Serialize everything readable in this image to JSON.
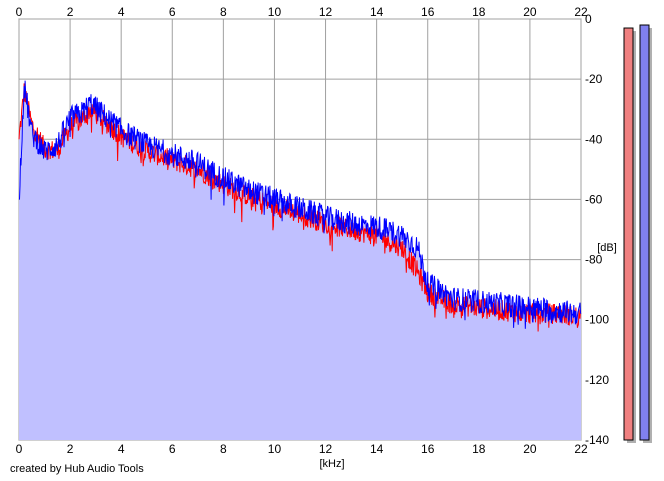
{
  "chart_data": {
    "type": "area",
    "title": "",
    "xlabel": "[kHz]",
    "ylabel": "[dB]",
    "xlim": [
      0,
      22
    ],
    "ylim": [
      -140,
      0
    ],
    "x_ticks": [
      0,
      2,
      4,
      6,
      8,
      10,
      12,
      14,
      16,
      18,
      20,
      22
    ],
    "y_ticks": [
      0,
      -20,
      -40,
      -60,
      -80,
      -100,
      -120,
      -140
    ],
    "grid": true,
    "legend": "none",
    "series": [
      {
        "color": "#ff0000",
        "x": [
          0.0,
          0.2,
          0.5,
          1.0,
          1.5,
          2.0,
          2.5,
          2.8,
          3.2,
          4.0,
          5.0,
          6.0,
          7.0,
          8.0,
          9.0,
          10.0,
          11.0,
          12.0,
          13.0,
          14.0,
          15.0,
          15.6,
          16.0,
          17.0,
          18.0,
          19.0,
          20.0,
          21.0,
          22.0
        ],
        "values": [
          -40,
          -24,
          -35,
          -43,
          -44,
          -36,
          -33,
          -30,
          -33,
          -39,
          -44,
          -47,
          -50,
          -55,
          -59,
          -62,
          -65,
          -68,
          -70,
          -72,
          -76,
          -84,
          -91,
          -95,
          -96,
          -97,
          -98,
          -98,
          -99
        ]
      },
      {
        "color": "#0000ff",
        "x": [
          0.0,
          0.2,
          0.5,
          1.0,
          1.5,
          2.0,
          2.5,
          2.8,
          3.2,
          4.0,
          5.0,
          6.0,
          7.0,
          8.0,
          9.0,
          10.0,
          11.0,
          12.0,
          13.0,
          14.0,
          15.0,
          15.6,
          16.0,
          17.0,
          18.0,
          19.0,
          20.0,
          21.0,
          22.0
        ],
        "values": [
          -60,
          -22,
          -38,
          -44,
          -42,
          -33,
          -31,
          -28,
          -31,
          -37,
          -42,
          -45,
          -48,
          -53,
          -57,
          -60,
          -63,
          -66,
          -68,
          -69,
          -72,
          -76,
          -88,
          -93,
          -94,
          -95,
          -96,
          -97,
          -98
        ]
      }
    ],
    "fill_color": "#c0c0ff",
    "meters": [
      {
        "color": "#f08080",
        "level_db": -3
      },
      {
        "color": "#8080f0",
        "level_db": -2
      }
    ]
  },
  "credit": "created by Hub Audio Tools"
}
